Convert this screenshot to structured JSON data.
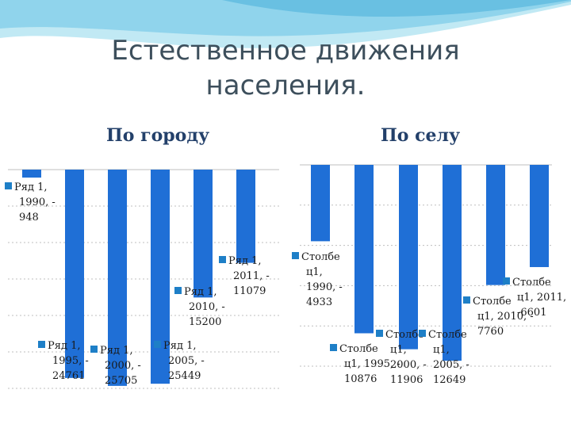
{
  "slide": {
    "title_line1": "Естественное движения",
    "title_line2": "населения."
  },
  "colors": {
    "bar": "#1f6fd6",
    "legend_marker": "#1e7fc7",
    "title": "#3d4f5c",
    "chart_title": "#23406a"
  },
  "chart_data": [
    {
      "type": "bar",
      "title": "По городу",
      "series": [
        {
          "name": "Ряд 1",
          "values": [
            -948,
            -24761,
            -25705,
            -25449,
            -15200,
            -11079
          ]
        }
      ],
      "categories": [
        "1990",
        "1995",
        "2000",
        "2005",
        "2010",
        "2011"
      ],
      "data_labels": [
        [
          "Ряд 1,",
          "1990, -",
          "948"
        ],
        [
          "Ряд 1,",
          "1995, -",
          "24761"
        ],
        [
          "Ряд 1,",
          "2000, -",
          "25705"
        ],
        [
          "Ряд 1,",
          "2005, -",
          "25449"
        ],
        [
          "Ряд 1,",
          "2010, -",
          "15200"
        ],
        [
          "Ряд 1,",
          "2011, -",
          "11079"
        ]
      ],
      "grid": true
    },
    {
      "type": "bar",
      "title": "По селу",
      "series": [
        {
          "name": "Столбец1",
          "values": [
            -4933,
            -10876,
            -11906,
            -12649,
            -7760,
            -6601
          ]
        }
      ],
      "categories": [
        "1990",
        "1995",
        "2000",
        "2005",
        "2010",
        "2011"
      ],
      "data_labels": [
        [
          "Столбе",
          "ц1,",
          "1990, -",
          "4933"
        ],
        [
          "Столбе",
          "ц1, 1995, -",
          "10876"
        ],
        [
          "Столбе",
          "ц1,",
          "2000, -",
          "11906"
        ],
        [
          "Столбе",
          "ц1,",
          "2005, -",
          "12649"
        ],
        [
          "Столбе",
          "ц1, 2010, -",
          "7760"
        ],
        [
          "Столбе",
          "ц1, 2011,",
          "-6601"
        ]
      ],
      "grid": true
    }
  ]
}
